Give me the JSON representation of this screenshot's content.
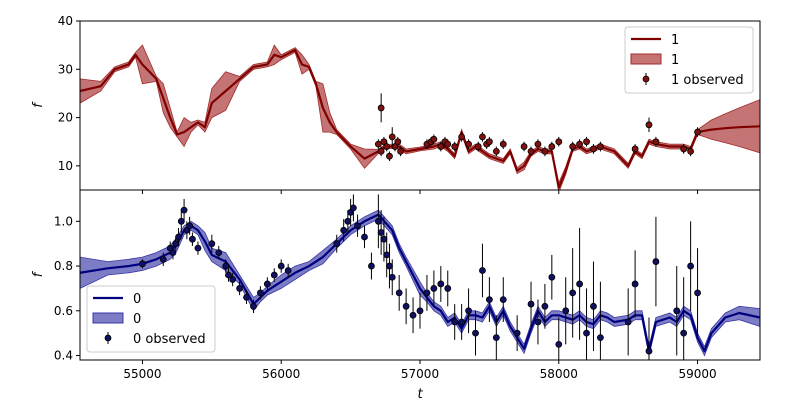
{
  "chart_data": [
    {
      "type": "line",
      "panel": "top",
      "ylabel": "f",
      "xlim": [
        54550,
        59450
      ],
      "ylim": [
        5,
        40
      ],
      "yticks": [
        10,
        20,
        30,
        40
      ],
      "legend_position": "top-right",
      "colors": {
        "line": "#7f0000",
        "band": "#a52a2a",
        "points": "#7f1010"
      },
      "legend": [
        {
          "kind": "line",
          "label": "1"
        },
        {
          "kind": "band",
          "label": "1"
        },
        {
          "kind": "points",
          "label": "1 observed"
        }
      ],
      "series": [
        {
          "name": "1",
          "x": [
            54550,
            54700,
            54800,
            54900,
            54950,
            55000,
            55100,
            55150,
            55200,
            55250,
            55300,
            55350,
            55400,
            55450,
            55500,
            55600,
            55700,
            55800,
            55900,
            55950,
            56000,
            56100,
            56150,
            56200,
            56250,
            56300,
            56350,
            56400,
            56500,
            56600,
            56700,
            56750,
            56800,
            56850,
            56900,
            57000,
            57100,
            57150,
            57200,
            57250,
            57300,
            57350,
            57400,
            57450,
            57500,
            57600,
            57650,
            57700,
            57750,
            57800,
            57850,
            57900,
            57950,
            58000,
            58050,
            58100,
            58150,
            58200,
            58300,
            58400,
            58500,
            58550,
            58600,
            58650,
            58700,
            58800,
            58900,
            58950,
            59000,
            59100,
            59200,
            59300,
            59450
          ],
          "y": [
            25.5,
            26.5,
            30,
            31,
            33,
            31,
            28,
            24,
            20,
            16.5,
            17,
            18,
            19,
            18,
            23,
            25.5,
            28,
            30.5,
            31,
            33,
            32.5,
            34,
            31,
            30.5,
            27,
            22,
            19,
            17,
            14,
            11.5,
            13,
            14,
            14,
            14,
            13,
            13.5,
            14,
            14.5,
            13.5,
            12,
            17,
            13,
            14,
            13,
            12,
            11,
            13,
            9,
            10,
            12.5,
            13.5,
            13,
            13,
            5.5,
            9,
            13.5,
            14,
            13,
            14,
            13,
            10,
            13,
            12,
            15,
            14.5,
            14,
            14,
            13.5,
            17,
            17.5,
            17.8,
            18,
            18.2
          ],
          "band": [
            2.5,
            1,
            0.5,
            0.5,
            0.5,
            4,
            0.5,
            3,
            2,
            0.5,
            3,
            1,
            0.5,
            1,
            3,
            4,
            0.5,
            0.5,
            0.5,
            2,
            0.5,
            0.5,
            2,
            0.5,
            0.5,
            5,
            2,
            0.5,
            0.5,
            2,
            0.4,
            0.4,
            0.4,
            0.5,
            0.5,
            0.4,
            0.5,
            0.5,
            0.5,
            0.5,
            0.5,
            0.5,
            0.5,
            0.5,
            0.5,
            0.5,
            0.5,
            0.6,
            0.8,
            0.5,
            0.5,
            0.5,
            0.5,
            1,
            0.8,
            0.5,
            0.5,
            0.5,
            0.5,
            0.5,
            0.5,
            0.5,
            0.5,
            0.5,
            0.5,
            0.5,
            0.5,
            0.5,
            0.5,
            2,
            3,
            4,
            5.5
          ]
        },
        {
          "name": "1 observed",
          "mode": "markers",
          "x": [
            56700,
            56720,
            56740,
            56760,
            56780,
            56800,
            56820,
            56840,
            56860,
            56720,
            57050,
            57080,
            57100,
            57150,
            57180,
            57200,
            57250,
            57300,
            57350,
            57420,
            57450,
            57480,
            57500,
            57550,
            57600,
            57750,
            57800,
            57850,
            57900,
            57950,
            58000,
            58100,
            58150,
            58200,
            58250,
            58300,
            58550,
            58650,
            58700,
            58900,
            58950,
            59000
          ],
          "y": [
            14.5,
            13,
            15,
            14,
            12,
            16,
            14,
            15,
            13,
            22,
            14.5,
            15,
            15.5,
            14,
            15,
            14.5,
            14,
            16,
            14.5,
            14,
            16,
            14.5,
            15,
            13,
            14.5,
            14,
            13,
            14.5,
            13,
            14,
            15,
            14,
            14.5,
            15,
            13.5,
            14,
            13.5,
            18.5,
            15,
            13.5,
            13,
            17
          ],
          "err": [
            1,
            1,
            1,
            1,
            1,
            2,
            1,
            1,
            1,
            3,
            1,
            1,
            1,
            1,
            1,
            1,
            1,
            1,
            1,
            1,
            1,
            1,
            1,
            1,
            1,
            1,
            1,
            1,
            1,
            1,
            1,
            1,
            1,
            1,
            1,
            1,
            1,
            1.5,
            1,
            1,
            1,
            1
          ]
        }
      ]
    },
    {
      "type": "line",
      "panel": "bottom",
      "xlabel": "t",
      "ylabel": "f",
      "xlim": [
        54550,
        59450
      ],
      "ylim": [
        0.38,
        1.14
      ],
      "yticks": [
        0.4,
        0.6,
        0.8,
        1.0
      ],
      "xticks": [
        55000,
        56000,
        57000,
        58000,
        59000
      ],
      "xtick_labels": [
        "55000",
        "56000",
        "57000",
        "58000",
        "59000"
      ],
      "legend_position": "bottom-left",
      "colors": {
        "line": "#00007f",
        "band": "#3838a8",
        "points": "#101060"
      },
      "legend": [
        {
          "kind": "line",
          "label": "0"
        },
        {
          "kind": "band",
          "label": "0"
        },
        {
          "kind": "points",
          "label": "0 observed"
        }
      ],
      "series": [
        {
          "name": "0",
          "x": [
            54550,
            54750,
            54900,
            55000,
            55100,
            55200,
            55250,
            55300,
            55350,
            55400,
            55450,
            55500,
            55600,
            55700,
            55800,
            55850,
            55900,
            56000,
            56100,
            56200,
            56300,
            56400,
            56500,
            56600,
            56700,
            56800,
            56850,
            56900,
            57000,
            57050,
            57100,
            57150,
            57200,
            57250,
            57300,
            57350,
            57400,
            57450,
            57500,
            57550,
            57600,
            57650,
            57700,
            57750,
            57800,
            57850,
            57900,
            57950,
            58000,
            58100,
            58150,
            58200,
            58250,
            58300,
            58350,
            58400,
            58500,
            58550,
            58600,
            58650,
            58700,
            58800,
            58850,
            58900,
            58950,
            59000,
            59050,
            59100,
            59200,
            59300,
            59450
          ],
          "y": [
            0.77,
            0.79,
            0.8,
            0.81,
            0.83,
            0.86,
            0.9,
            0.96,
            0.98,
            0.96,
            0.91,
            0.85,
            0.82,
            0.74,
            0.63,
            0.66,
            0.69,
            0.73,
            0.77,
            0.8,
            0.84,
            0.9,
            0.96,
            1.0,
            1.03,
            0.96,
            0.88,
            0.82,
            0.7,
            0.66,
            0.62,
            0.6,
            0.55,
            0.57,
            0.52,
            0.58,
            0.58,
            0.57,
            0.62,
            0.55,
            0.6,
            0.53,
            0.48,
            0.43,
            0.52,
            0.6,
            0.55,
            0.58,
            0.58,
            0.56,
            0.58,
            0.55,
            0.54,
            0.58,
            0.57,
            0.55,
            0.56,
            0.58,
            0.58,
            0.42,
            0.55,
            0.57,
            0.55,
            0.6,
            0.58,
            0.48,
            0.42,
            0.5,
            0.57,
            0.59,
            0.57
          ],
          "band": [
            0.07,
            0.03,
            0.03,
            0.03,
            0.03,
            0.03,
            0.03,
            0.02,
            0.02,
            0.02,
            0.04,
            0.03,
            0.04,
            0.02,
            0.03,
            0.02,
            0.02,
            0.03,
            0.03,
            0.02,
            0.03,
            0.02,
            0.02,
            0.02,
            0.02,
            0.02,
            0.02,
            0.02,
            0.03,
            0.02,
            0.02,
            0.02,
            0.02,
            0.02,
            0.02,
            0.02,
            0.02,
            0.02,
            0.02,
            0.02,
            0.02,
            0.02,
            0.02,
            0.02,
            0.02,
            0.02,
            0.02,
            0.02,
            0.02,
            0.02,
            0.02,
            0.02,
            0.02,
            0.02,
            0.02,
            0.02,
            0.02,
            0.02,
            0.02,
            0.02,
            0.02,
            0.02,
            0.02,
            0.02,
            0.02,
            0.02,
            0.02,
            0.02,
            0.02,
            0.03,
            0.04
          ]
        },
        {
          "name": "0 observed",
          "mode": "markers",
          "x": [
            55000,
            55150,
            55200,
            55220,
            55240,
            55260,
            55280,
            55300,
            55320,
            55340,
            55360,
            55400,
            55500,
            55550,
            55600,
            55620,
            55650,
            55700,
            55750,
            55800,
            55850,
            55900,
            55950,
            56000,
            56050,
            56400,
            56450,
            56480,
            56500,
            56520,
            56550,
            56600,
            56650,
            56700,
            56720,
            56740,
            56760,
            56780,
            56800,
            56850,
            56900,
            56950,
            57000,
            57050,
            57100,
            57150,
            57200,
            57250,
            57300,
            57350,
            57400,
            57450,
            57500,
            57550,
            57600,
            57700,
            57800,
            57850,
            57900,
            57950,
            58000,
            58050,
            58100,
            58150,
            58200,
            58250,
            58300,
            58500,
            58550,
            58650,
            58700,
            58850,
            58900,
            58950,
            59000
          ],
          "y": [
            0.81,
            0.83,
            0.88,
            0.86,
            0.9,
            0.93,
            1.0,
            1.05,
            0.96,
            0.98,
            0.92,
            0.88,
            0.9,
            0.86,
            0.8,
            0.76,
            0.74,
            0.7,
            0.66,
            0.62,
            0.68,
            0.72,
            0.76,
            0.8,
            0.78,
            0.9,
            0.96,
            1.0,
            1.04,
            1.06,
            0.98,
            0.93,
            0.8,
            1.0,
            0.95,
            0.92,
            0.85,
            0.8,
            0.75,
            0.68,
            0.62,
            0.58,
            0.6,
            0.68,
            0.7,
            0.72,
            0.7,
            0.55,
            0.55,
            0.6,
            0.5,
            0.78,
            0.65,
            0.48,
            0.65,
            0.5,
            0.63,
            0.55,
            0.62,
            0.75,
            0.45,
            0.6,
            0.68,
            0.72,
            0.5,
            0.62,
            0.48,
            0.55,
            0.72,
            0.42,
            0.82,
            0.6,
            0.5,
            0.8,
            0.68
          ],
          "err": [
            0.02,
            0.03,
            0.03,
            0.03,
            0.03,
            0.04,
            0.05,
            0.05,
            0.04,
            0.04,
            0.03,
            0.03,
            0.04,
            0.03,
            0.03,
            0.03,
            0.03,
            0.03,
            0.03,
            0.03,
            0.03,
            0.03,
            0.03,
            0.03,
            0.03,
            0.04,
            0.05,
            0.05,
            0.06,
            0.06,
            0.05,
            0.05,
            0.06,
            0.12,
            0.1,
            0.1,
            0.1,
            0.1,
            0.08,
            0.08,
            0.08,
            0.08,
            0.08,
            0.08,
            0.08,
            0.08,
            0.08,
            0.08,
            0.08,
            0.1,
            0.1,
            0.12,
            0.1,
            0.1,
            0.1,
            0.08,
            0.1,
            0.1,
            0.1,
            0.1,
            0.12,
            0.15,
            0.2,
            0.25,
            0.2,
            0.2,
            0.25,
            0.15,
            0.15,
            0.15,
            0.2,
            0.2,
            0.25,
            0.2,
            0.2
          ]
        }
      ]
    }
  ]
}
